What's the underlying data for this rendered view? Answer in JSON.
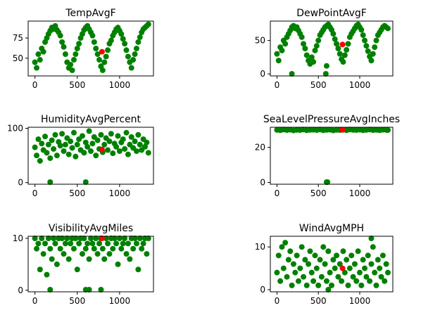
{
  "chart_data": [
    {
      "type": "scatter",
      "title": "TempAvgF",
      "xlim": [
        -80,
        1400
      ],
      "ylim": [
        28,
        96
      ],
      "xticks": [
        0,
        500,
        1000
      ],
      "yticks": [
        50,
        75
      ],
      "series": [
        {
          "color": "#008000",
          "x": [
            0,
            20,
            40,
            60,
            80,
            100,
            120,
            140,
            160,
            180,
            200,
            220,
            240,
            260,
            280,
            300,
            320,
            340,
            360,
            380,
            400,
            420,
            440,
            460,
            480,
            500,
            520,
            540,
            560,
            580,
            600,
            620,
            640,
            660,
            680,
            700,
            720,
            740,
            760,
            780,
            800,
            820,
            840,
            860,
            880,
            900,
            920,
            940,
            960,
            980,
            1000,
            1020,
            1040,
            1060,
            1080,
            1100,
            1120,
            1140,
            1160,
            1180,
            1200,
            1220,
            1240,
            1260,
            1280,
            1300,
            1320,
            1340
          ],
          "y": [
            45,
            38,
            55,
            48,
            62,
            58,
            70,
            75,
            80,
            84,
            88,
            86,
            90,
            85,
            82,
            78,
            70,
            64,
            55,
            45,
            38,
            42,
            35,
            48,
            55,
            62,
            68,
            75,
            80,
            85,
            88,
            90,
            86,
            82,
            78,
            70,
            62,
            55,
            48,
            40,
            35,
            45,
            52,
            60,
            68,
            72,
            78,
            82,
            86,
            88,
            84,
            80,
            74,
            68,
            60,
            52,
            45,
            38,
            48,
            55,
            62,
            70,
            76,
            82,
            86,
            88,
            90,
            92
          ]
        },
        {
          "color": "#ff0000",
          "x": [
            792
          ],
          "y": [
            58
          ]
        }
      ]
    },
    {
      "type": "scatter",
      "title": "DewPointAvgF",
      "xlim": [
        -80,
        1400
      ],
      "ylim": [
        -3,
        79
      ],
      "xticks": [
        0,
        500,
        1000
      ],
      "yticks": [
        0,
        50
      ],
      "series": [
        {
          "color": "#008000",
          "x": [
            0,
            20,
            40,
            60,
            80,
            100,
            120,
            140,
            160,
            180,
            200,
            220,
            240,
            260,
            280,
            300,
            320,
            340,
            360,
            380,
            400,
            420,
            440,
            460,
            480,
            500,
            520,
            540,
            560,
            580,
            600,
            620,
            640,
            660,
            680,
            700,
            720,
            740,
            760,
            780,
            800,
            820,
            840,
            860,
            880,
            900,
            920,
            940,
            960,
            980,
            1000,
            1020,
            1040,
            1060,
            1080,
            1100,
            1120,
            1140,
            1160,
            1180,
            1200,
            1220,
            1240,
            1260,
            1280,
            1300,
            1320,
            1340,
            180,
            590,
            600
          ],
          "y": [
            30,
            20,
            40,
            35,
            50,
            45,
            55,
            60,
            65,
            70,
            72,
            68,
            70,
            65,
            60,
            55,
            45,
            38,
            28,
            20,
            15,
            25,
            18,
            35,
            42,
            50,
            58,
            62,
            66,
            70,
            72,
            74,
            70,
            66,
            60,
            52,
            45,
            38,
            30,
            22,
            18,
            28,
            36,
            45,
            55,
            60,
            64,
            68,
            72,
            74,
            70,
            66,
            58,
            50,
            42,
            34,
            26,
            20,
            30,
            40,
            50,
            58,
            62,
            66,
            70,
            72,
            70,
            68,
            0,
            0,
            12
          ]
        },
        {
          "color": "#ff0000",
          "x": [
            792
          ],
          "y": [
            44
          ]
        }
      ]
    },
    {
      "type": "scatter",
      "title": "HumidityAvgPercent",
      "xlim": [
        -80,
        1400
      ],
      "ylim": [
        -3,
        102
      ],
      "xticks": [
        0,
        500,
        1000
      ],
      "yticks": [
        0,
        100
      ],
      "series": [
        {
          "color": "#008000",
          "x": [
            0,
            20,
            40,
            60,
            80,
            100,
            120,
            140,
            160,
            180,
            200,
            220,
            240,
            260,
            280,
            300,
            320,
            340,
            360,
            380,
            400,
            420,
            440,
            460,
            480,
            500,
            520,
            540,
            560,
            580,
            600,
            620,
            640,
            660,
            680,
            700,
            720,
            740,
            760,
            780,
            800,
            820,
            840,
            860,
            880,
            900,
            920,
            940,
            960,
            980,
            1000,
            1020,
            1040,
            1060,
            1080,
            1100,
            1120,
            1140,
            1160,
            1180,
            1200,
            1220,
            1240,
            1260,
            1280,
            1300,
            1320,
            1340,
            180,
            600
          ],
          "y": [
            65,
            50,
            80,
            40,
            72,
            60,
            85,
            55,
            70,
            45,
            78,
            62,
            88,
            50,
            75,
            68,
            90,
            58,
            70,
            82,
            52,
            76,
            64,
            92,
            48,
            70,
            80,
            60,
            86,
            55,
            74,
            66,
            95,
            58,
            72,
            84,
            50,
            78,
            62,
            88,
            56,
            70,
            82,
            60,
            76,
            90,
            54,
            72,
            66,
            86,
            58,
            74,
            80,
            62,
            92,
            52,
            70,
            84,
            64,
            76,
            58,
            88,
            70,
            60,
            80,
            66,
            74,
            55,
            0,
            0
          ]
        },
        {
          "color": "#ff0000",
          "x": [
            792
          ],
          "y": [
            61
          ]
        }
      ]
    },
    {
      "type": "scatter",
      "title": "SeaLevelPressureAvgInches",
      "xlim": [
        -80,
        1400
      ],
      "ylim": [
        -1,
        31.5
      ],
      "xticks": [
        0,
        500,
        1000
      ],
      "yticks": [
        0,
        20
      ],
      "series": [
        {
          "color": "#008000",
          "x": [
            0,
            40,
            80,
            120,
            160,
            200,
            240,
            280,
            320,
            360,
            400,
            440,
            480,
            520,
            560,
            600,
            640,
            680,
            720,
            760,
            800,
            840,
            880,
            920,
            960,
            1000,
            1040,
            1080,
            1120,
            1160,
            1200,
            1240,
            1280,
            1320,
            1340,
            600,
            610
          ],
          "y": [
            30,
            29.8,
            30.2,
            29.9,
            30.1,
            29.7,
            30,
            29.9,
            30.2,
            29.8,
            30,
            30.1,
            29.9,
            30.2,
            29.8,
            30,
            30.1,
            29.7,
            30,
            29.9,
            30.1,
            29.8,
            30.2,
            30,
            29.9,
            30.1,
            29.8,
            30,
            30.2,
            29.9,
            30,
            29.8,
            30.1,
            30,
            29.9,
            0,
            0
          ]
        },
        {
          "color": "#ff0000",
          "x": [
            792
          ],
          "y": [
            30
          ]
        }
      ]
    },
    {
      "type": "scatter",
      "title": "VisibilityAvgMiles",
      "xlim": [
        -80,
        1400
      ],
      "ylim": [
        -0.3,
        10.4
      ],
      "xticks": [
        0,
        500,
        1000
      ],
      "yticks": [
        0,
        10
      ],
      "series": [
        {
          "color": "#008000",
          "x": [
            0,
            20,
            40,
            60,
            80,
            100,
            120,
            140,
            160,
            180,
            200,
            220,
            240,
            260,
            280,
            300,
            320,
            340,
            360,
            380,
            400,
            420,
            440,
            460,
            480,
            500,
            520,
            540,
            560,
            580,
            600,
            620,
            640,
            660,
            680,
            700,
            720,
            740,
            760,
            780,
            800,
            820,
            840,
            860,
            880,
            900,
            920,
            940,
            960,
            980,
            1000,
            1020,
            1040,
            1060,
            1080,
            1100,
            1120,
            1140,
            1160,
            1180,
            1200,
            1220,
            1240,
            1260,
            1280,
            1300,
            1320,
            1340,
            180,
            600,
            640,
            780
          ],
          "y": [
            10,
            8,
            9,
            4,
            10,
            7,
            9,
            3,
            10,
            8,
            6,
            10,
            9,
            5,
            10,
            8,
            10,
            7,
            9,
            10,
            6,
            9,
            10,
            8,
            10,
            4,
            9,
            10,
            7,
            10,
            8,
            9,
            6,
            10,
            9,
            8,
            10,
            7,
            9,
            10,
            8,
            6,
            10,
            9,
            7,
            10,
            8,
            10,
            9,
            5,
            10,
            8,
            9,
            10,
            7,
            9,
            6,
            10,
            8,
            10,
            9,
            4,
            10,
            8,
            9,
            10,
            7,
            10,
            0,
            0,
            0,
            0
          ]
        },
        {
          "color": "#ff0000",
          "x": [
            792
          ],
          "y": [
            10
          ]
        }
      ]
    },
    {
      "type": "scatter",
      "title": "WindAvgMPH",
      "xlim": [
        -80,
        1400
      ],
      "ylim": [
        -0.5,
        12.5
      ],
      "xticks": [
        0,
        500,
        1000
      ],
      "yticks": [
        0,
        10
      ],
      "series": [
        {
          "color": "#008000",
          "x": [
            0,
            20,
            40,
            60,
            80,
            100,
            120,
            140,
            160,
            180,
            200,
            220,
            240,
            260,
            280,
            300,
            320,
            340,
            360,
            380,
            400,
            420,
            440,
            460,
            480,
            500,
            520,
            540,
            560,
            580,
            600,
            620,
            640,
            660,
            680,
            700,
            720,
            740,
            760,
            780,
            800,
            820,
            840,
            860,
            880,
            900,
            920,
            940,
            960,
            980,
            1000,
            1020,
            1040,
            1060,
            1080,
            1100,
            1120,
            1140,
            1160,
            1180,
            1200,
            1220,
            1240,
            1260,
            1280,
            1300,
            1320,
            1340,
            620,
            1140
          ],
          "y": [
            4,
            8,
            2,
            10,
            5,
            11,
            3,
            7,
            9,
            1,
            6,
            4,
            8,
            2,
            5,
            10,
            3,
            7,
            1,
            6,
            9,
            4,
            2,
            8,
            5,
            1,
            7,
            3,
            10,
            6,
            2,
            9,
            4,
            1,
            7,
            5,
            8,
            3,
            6,
            2,
            9,
            4,
            7,
            1,
            5,
            8,
            3,
            6,
            2,
            9,
            4,
            1,
            7,
            5,
            3,
            8,
            2,
            6,
            10,
            4,
            1,
            7,
            5,
            3,
            8,
            2,
            6,
            4,
            0,
            12
          ]
        },
        {
          "color": "#ff0000",
          "x": [
            792
          ],
          "y": [
            5
          ]
        }
      ]
    }
  ]
}
